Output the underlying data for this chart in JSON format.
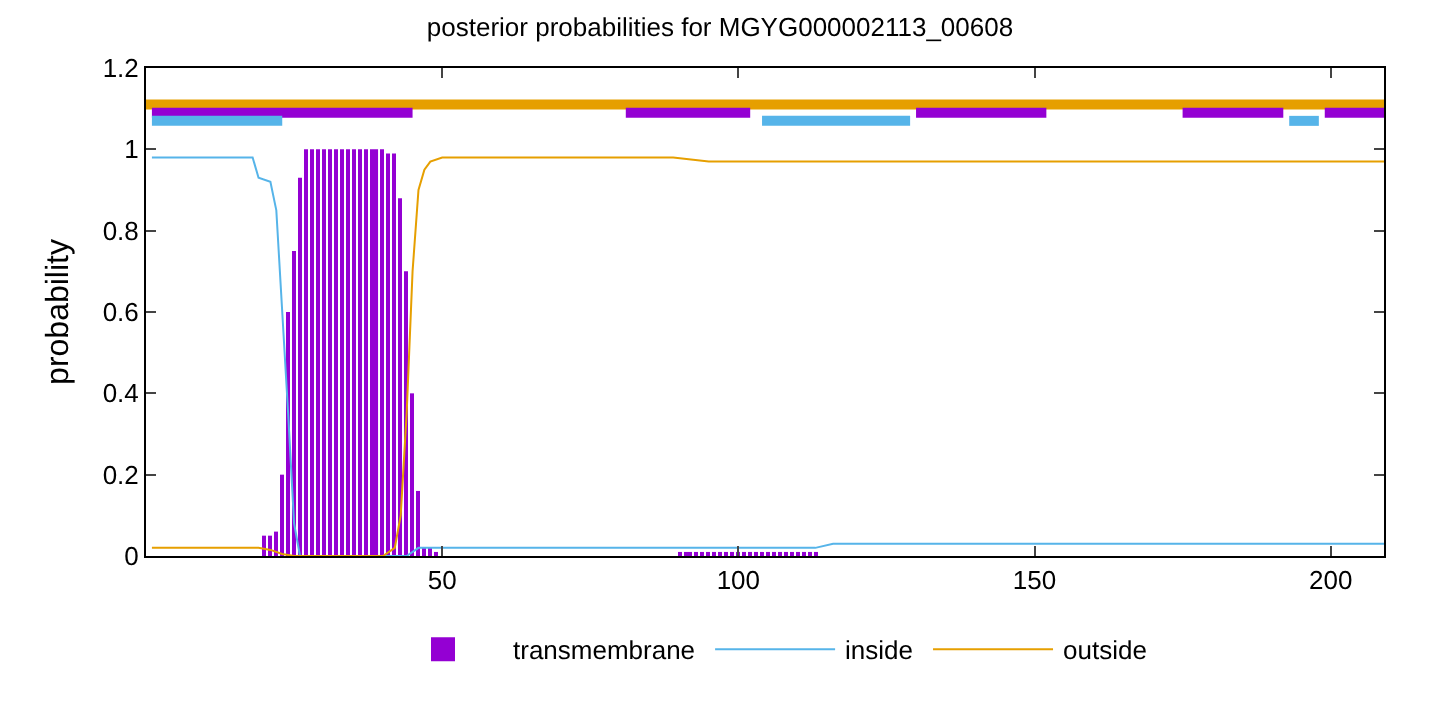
{
  "chart_data": {
    "type": "line",
    "title": "posterior probabilities for MGYG000002113_00608",
    "ylabel": "probability",
    "xlim": [
      0,
      209
    ],
    "xticks": [
      50,
      100,
      150,
      200
    ],
    "ylim": [
      0,
      1.2
    ],
    "yticks": [
      0,
      0.2,
      0.4,
      0.6,
      0.8,
      1,
      1.2
    ],
    "legend": "bottom",
    "grid": false,
    "series": [
      {
        "name": "transmembrane",
        "type": "bar",
        "color": "#9400d3",
        "x": [
          20,
          21,
          22,
          23,
          24,
          25,
          26,
          27,
          28,
          29,
          30,
          31,
          32,
          33,
          34,
          35,
          36,
          37,
          38,
          39,
          40,
          41,
          42,
          43,
          44,
          45,
          46,
          47,
          48,
          49,
          90,
          91,
          92,
          93,
          94,
          95,
          96,
          97,
          98,
          99,
          100,
          101,
          102,
          103,
          104,
          105,
          106,
          107,
          108,
          109,
          110,
          111,
          112,
          113
        ],
        "values": [
          0.05,
          0.05,
          0.06,
          0.2,
          0.6,
          0.75,
          0.93,
          1,
          1,
          1,
          1,
          1,
          1,
          1,
          1,
          1,
          1,
          1,
          1,
          1,
          1,
          0.99,
          0.99,
          0.88,
          0.7,
          0.4,
          0.16,
          0.02,
          0.02,
          0.01,
          0.01,
          0.01,
          0.01,
          0.01,
          0.01,
          0.01,
          0.01,
          0.01,
          0.01,
          0.01,
          0.01,
          0.01,
          0.01,
          0.01,
          0.01,
          0.01,
          0.01,
          0.01,
          0.01,
          0.01,
          0.01,
          0.01,
          0.01,
          0.01
        ]
      },
      {
        "name": "inside",
        "color": "#56b4e9",
        "x": [
          1,
          18,
          19,
          21,
          22,
          23,
          24,
          25,
          26,
          44,
          46,
          113,
          116,
          209
        ],
        "values": [
          0.98,
          0.98,
          0.93,
          0.92,
          0.85,
          0.6,
          0.35,
          0.08,
          0,
          0,
          0.02,
          0.02,
          0.03,
          0.03
        ]
      },
      {
        "name": "outside",
        "color": "#e69f00",
        "x": [
          1,
          19,
          21,
          23,
          25,
          40,
          42,
          43,
          44,
          45,
          46,
          47,
          48,
          50,
          89,
          95,
          209
        ],
        "values": [
          0.02,
          0.02,
          0.015,
          0.005,
          0,
          0,
          0.02,
          0.1,
          0.35,
          0.7,
          0.9,
          0.95,
          0.97,
          0.98,
          0.98,
          0.97,
          0.97
        ]
      },
      {
        "color": "#e69f00",
        "x": [
          0,
          209
        ],
        "values": [
          1.11,
          1.11
        ]
      },
      {
        "color": "#9400d3",
        "x": [
          1,
          45,
          46,
          81,
          102,
          103,
          130,
          152,
          153,
          175,
          192,
          193,
          199,
          209
        ],
        "values": [
          1.09,
          1.09,
          null,
          1.09,
          1.09,
          null,
          1.09,
          1.09,
          null,
          1.09,
          1.09,
          null,
          1.09,
          1.09
        ]
      },
      {
        "color": "#56b4e9",
        "x": [
          1,
          23,
          24,
          104,
          129,
          130,
          193,
          198
        ],
        "values": [
          1.07,
          1.07,
          null,
          1.07,
          1.07,
          null,
          1.07,
          1.07
        ]
      }
    ]
  }
}
